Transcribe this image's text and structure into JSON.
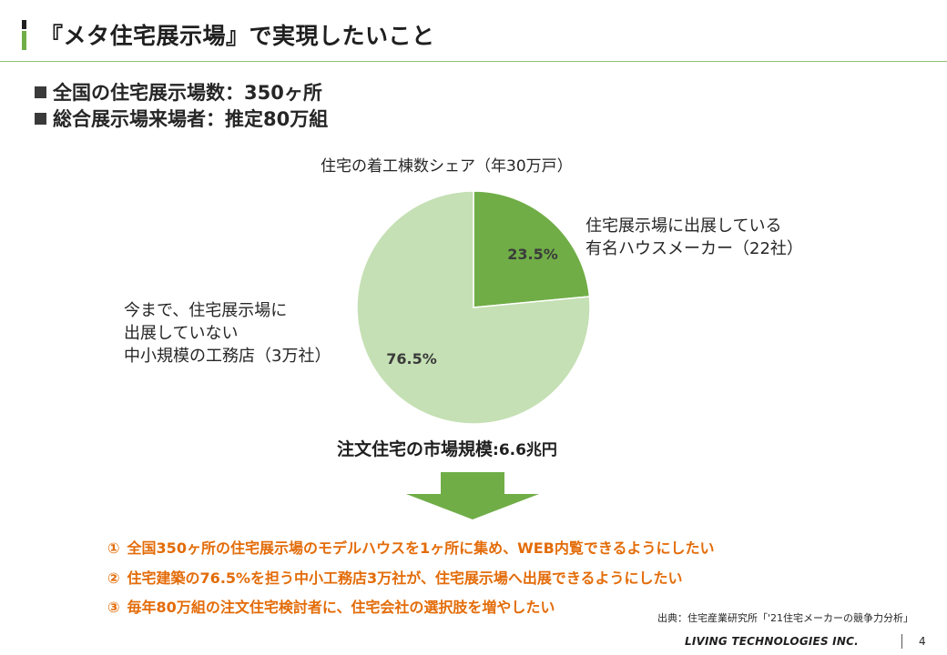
{
  "header": {
    "title": "『メタ住宅展示場』で実現したいこと"
  },
  "bullets": [
    "全国の住宅展示場数：350ヶ所",
    "総合展示場来場者：推定80万組"
  ],
  "chart_data": {
    "type": "pie",
    "title": "住宅の着工棟数シェア（年30万戸）",
    "slices": [
      {
        "label_lines": [
          "住宅展示場に出展している",
          "有名ハウスメーカー（22社）"
        ],
        "value": 23.5,
        "value_label": "23.5%",
        "color": "#70ad47"
      },
      {
        "label_lines": [
          "今まで、住宅展示場に",
          "出展していない",
          "中小規模の工務店（3万社）"
        ],
        "value": 76.5,
        "value_label": "76.5%",
        "color": "#c5e0b4"
      }
    ]
  },
  "market": {
    "label": "注文住宅の市場規模",
    "value": ":6.6兆円"
  },
  "colors": {
    "accent_green": "#70ad47",
    "light_green": "#c5e0b4",
    "orange_text": "#e36c09"
  },
  "goals": [
    {
      "num": "①",
      "text": "全国350ヶ所の住宅展示場のモデルハウスを1ヶ所に集め、WEB内覧できるようにしたい"
    },
    {
      "num": "②",
      "text": "住宅建築の76.5%を担う中小工務店3万社が、住宅展示場へ出展できるようにしたい"
    },
    {
      "num": "③",
      "text": "毎年80万組の注文住宅検討者に、住宅会社の選択肢を増やしたい"
    }
  ],
  "footer": {
    "source": "出典：住宅産業研究所「'21住宅メーカーの競争力分析」",
    "company": "LIVING TECHNOLOGIES INC.",
    "page": "4"
  }
}
